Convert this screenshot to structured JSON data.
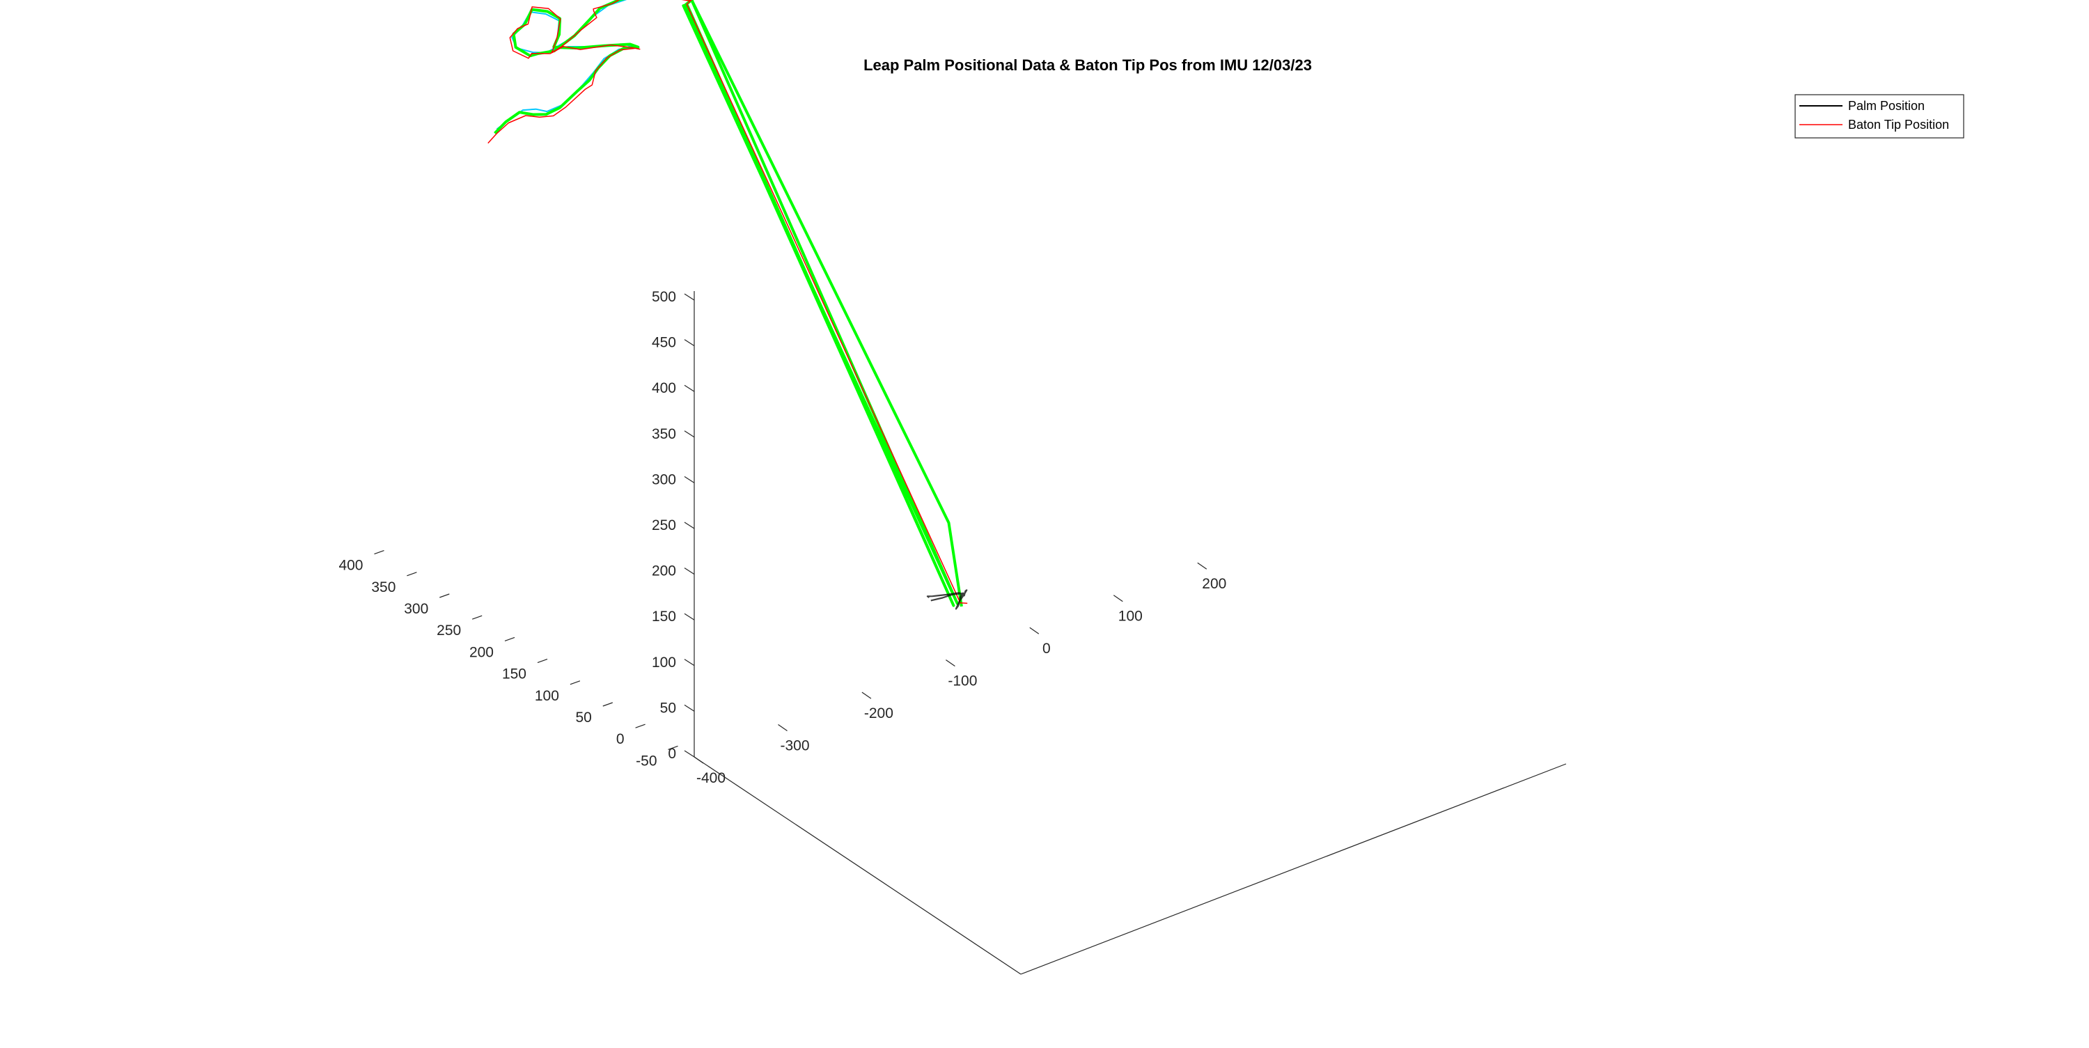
{
  "chart_data": {
    "type": "line",
    "projection": "3d",
    "title": "Leap Palm Positional Data & Baton Tip Pos from IMU 12/03/23",
    "legend": {
      "placement": "top-right",
      "entries": [
        {
          "label": "Palm Position",
          "color": "#000000"
        },
        {
          "label": "Baton Tip Position",
          "color": "#ff0000"
        }
      ]
    },
    "grid": false,
    "colors": {
      "palm": "#000000",
      "baton_tip": "#ff0000",
      "trail_green": "#00ff00",
      "trail_cyan": "#00c8ff"
    },
    "axes": {
      "x": {
        "lim": [
          -400,
          250
        ],
        "ticks": [
          -400,
          -300,
          -200,
          -100,
          0,
          100,
          200
        ],
        "tick_labels": [
          "-400",
          "-300",
          "-200",
          "-100",
          "0",
          "100",
          "200"
        ]
      },
      "y": {
        "lim": [
          -75,
          425
        ],
        "ticks": [
          -50,
          0,
          50,
          100,
          150,
          200,
          250,
          300,
          350,
          400
        ],
        "tick_labels": [
          "-50",
          "0",
          "50",
          "100",
          "150",
          "200",
          "250",
          "300",
          "350",
          "400"
        ]
      },
      "z": {
        "lim": [
          0,
          510
        ],
        "ticks": [
          0,
          50,
          100,
          150,
          200,
          250,
          300,
          350,
          400,
          450,
          500
        ],
        "tick_labels": [
          "0",
          "50",
          "100",
          "150",
          "200",
          "250",
          "300",
          "350",
          "400",
          "450",
          "500"
        ]
      }
    },
    "series": [
      {
        "name": "Palm Position",
        "color": "#000000",
        "points": [
          [
            -72,
            -16,
            27
          ],
          [
            -58,
            -16,
            25
          ],
          [
            -48,
            -18,
            26
          ],
          [
            -40,
            -18,
            24
          ],
          [
            -34,
            -17,
            22
          ],
          [
            -38,
            -17,
            18
          ],
          [
            -36,
            -16,
            20
          ],
          [
            -40,
            -19,
            16
          ],
          [
            -44,
            -22,
            14
          ],
          [
            -49,
            -25,
            14
          ],
          [
            -43,
            -22,
            18
          ],
          [
            -36,
            -20,
            22
          ],
          [
            -30,
            -17,
            24
          ],
          [
            -30,
            -15,
            22
          ],
          [
            -33,
            -17,
            19
          ],
          [
            -36,
            -20,
            22
          ],
          [
            -40,
            -18,
            25
          ],
          [
            -50,
            -16,
            26
          ],
          [
            -62,
            -16,
            29
          ],
          [
            -70,
            -16,
            31
          ],
          [
            -76,
            -16,
            33
          ],
          [
            -74,
            -16,
            31
          ]
        ]
      },
      {
        "name": "Baton Tip Position",
        "color": "#ff0000",
        "points": [
          [
            -276,
            400,
            402
          ],
          [
            -265,
            401,
            408
          ],
          [
            -250,
            402,
            414
          ],
          [
            -235,
            395,
            420
          ],
          [
            -220,
            393,
            414
          ],
          [
            -202,
            395,
            408
          ],
          [
            -185,
            398,
            410
          ],
          [
            -160,
            400,
            420
          ],
          [
            -148,
            405,
            418
          ],
          [
            -140,
            410,
            428
          ],
          [
            -125,
            412,
            436
          ],
          [
            -110,
            411,
            440
          ],
          [
            -92,
            410,
            436
          ],
          [
            -88,
            409,
            434
          ],
          [
            -100,
            410,
            440
          ],
          [
            -120,
            413,
            448
          ],
          [
            -155,
            414,
            455
          ],
          [
            -180,
            408,
            470
          ],
          [
            -200,
            400,
            474
          ],
          [
            -190,
            405,
            484
          ],
          [
            -182,
            410,
            500
          ],
          [
            -200,
            405,
            520
          ],
          [
            -225,
            398,
            534
          ],
          [
            -236,
            390,
            523
          ],
          [
            -250,
            388,
            524
          ],
          [
            -260,
            387,
            518
          ],
          [
            -254,
            390,
            500
          ],
          [
            -230,
            397,
            480
          ],
          [
            -220,
            405,
            478
          ],
          [
            -198,
            405,
            470
          ],
          [
            -190,
            398,
            478
          ],
          [
            -170,
            395,
            490
          ],
          [
            -148,
            398,
            495
          ],
          [
            -150,
            400,
            502
          ],
          [
            -152,
            398,
            506
          ],
          [
            -132,
            395,
            506
          ],
          [
            -118,
            393,
            510
          ],
          [
            -104,
            387,
            508
          ],
          [
            -82,
            380,
            505
          ],
          [
            -74,
            378,
            502
          ],
          [
            -68,
            375,
            498
          ],
          [
            -58,
            372,
            494
          ],
          [
            -50,
            374,
            493
          ],
          [
            -40,
            376,
            495
          ],
          [
            -58,
            370,
            495
          ],
          [
            -64,
            368,
            494
          ],
          [
            -40,
            -20,
            15
          ],
          [
            -30,
            -18,
            10
          ]
        ]
      },
      {
        "name": "",
        "color": "#00c8ff",
        "points": [
          [
            -264,
            402,
            412
          ],
          [
            -250,
            401,
            418
          ],
          [
            -236,
            398,
            425
          ],
          [
            -222,
            396,
            422
          ],
          [
            -208,
            397,
            414
          ],
          [
            -188,
            398,
            414
          ],
          [
            -162,
            402,
            424
          ],
          [
            -146,
            406,
            430
          ],
          [
            -130,
            410,
            438
          ],
          [
            -112,
            410,
            442
          ],
          [
            -95,
            409,
            438
          ],
          [
            -104,
            412,
            444
          ],
          [
            -138,
            414,
            452
          ],
          [
            -172,
            410,
            466
          ],
          [
            -196,
            402,
            476
          ],
          [
            -190,
            404,
            486
          ],
          [
            -185,
            408,
            500
          ],
          [
            -204,
            404,
            516
          ],
          [
            -228,
            397,
            530
          ],
          [
            -244,
            390,
            522
          ],
          [
            -256,
            389,
            516
          ],
          [
            -248,
            392,
            500
          ],
          [
            -224,
            398,
            484
          ],
          [
            -204,
            403,
            474
          ],
          [
            -178,
            397,
            484
          ],
          [
            -152,
            398,
            498
          ],
          [
            -136,
            396,
            505
          ],
          [
            -110,
            390,
            508
          ],
          [
            -88,
            382,
            505
          ],
          [
            -70,
            376,
            500
          ],
          [
            -56,
            372,
            496
          ],
          [
            -44,
            375,
            496
          ]
        ]
      },
      {
        "name": "",
        "color": "#00ff00",
        "points": [
          [
            -268,
            400,
            410
          ],
          [
            -254,
            401,
            417
          ],
          [
            -240,
            398,
            424
          ],
          [
            -226,
            395,
            418
          ],
          [
            -210,
            396,
            412
          ],
          [
            -192,
            398,
            412
          ],
          [
            -170,
            400,
            421
          ],
          [
            -152,
            404,
            425
          ],
          [
            -138,
            408,
            432
          ],
          [
            -122,
            411,
            438
          ],
          [
            -106,
            410,
            441
          ],
          [
            -90,
            409,
            437
          ],
          [
            -98,
            411,
            442
          ],
          [
            -128,
            413,
            450
          ],
          [
            -162,
            412,
            460
          ],
          [
            -186,
            406,
            472
          ],
          [
            -196,
            402,
            478
          ],
          [
            -188,
            404,
            488
          ],
          [
            -184,
            408,
            502
          ],
          [
            -202,
            404,
            518
          ],
          [
            -226,
            397,
            532
          ],
          [
            -240,
            390,
            524
          ],
          [
            -254,
            389,
            519
          ],
          [
            -250,
            391,
            502
          ],
          [
            -228,
            397,
            482
          ],
          [
            -214,
            404,
            476
          ],
          [
            -194,
            404,
            472
          ],
          [
            -176,
            396,
            486
          ],
          [
            -156,
            398,
            496
          ],
          [
            -144,
            398,
            504
          ],
          [
            -124,
            394,
            508
          ],
          [
            -108,
            390,
            508
          ],
          [
            -86,
            380,
            506
          ],
          [
            -72,
            377,
            502
          ],
          [
            -60,
            372,
            496
          ],
          [
            -48,
            374,
            494
          ],
          [
            -38,
            376,
            496
          ],
          [
            -52,
            372,
            495
          ],
          [
            -60,
            370,
            494
          ],
          [
            -66,
            368,
            494
          ],
          [
            -48,
            -20,
            15
          ],
          [
            -62,
            370,
            492
          ],
          [
            -68,
            368,
            494
          ],
          [
            -42,
            -18,
            14
          ],
          [
            -56,
            372,
            496
          ],
          [
            -46,
            -10,
            100
          ],
          [
            -40,
            -22,
            12
          ]
        ]
      }
    ]
  }
}
